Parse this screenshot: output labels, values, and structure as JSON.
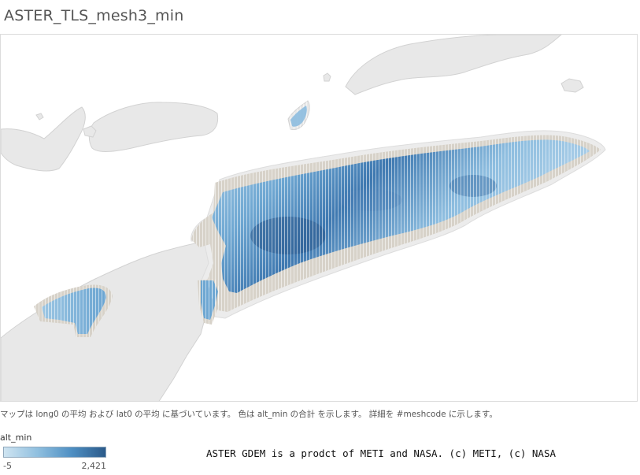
{
  "title": "ASTER_TLS_mesh3_min",
  "map": {
    "caption": "マップは long0 の平均 および lat0 の平均 に基づいています。 色は alt_min の合計 を示します。 詳細を #meshcode に示します。",
    "colors": {
      "land": "#e8e8e8",
      "land_outline": "#d2d2d2",
      "water": "#ffffff",
      "low_band": "#d7d2c9",
      "color_low": "#cfe4f1",
      "color_high": "#2b5a8a"
    }
  },
  "legend": {
    "title": "alt_min",
    "min_label": "-5",
    "max_label": "2,421"
  },
  "credit": "ASTER GDEM is a prodct of METI and NASA. (c) METI, (c) NASA"
}
